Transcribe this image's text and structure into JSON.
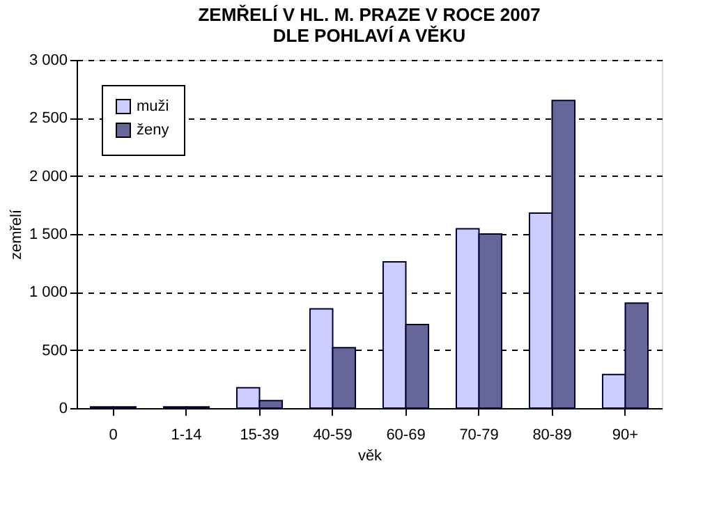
{
  "chart_data": {
    "type": "bar",
    "title": "ZEMŘELÍ V HL. M. PRAZE V ROCE 2007\nDLE POHLAVÍ A VĚKU",
    "xlabel": "věk",
    "ylabel": "zemřelí",
    "categories": [
      "0",
      "1-14",
      "15-39",
      "40-59",
      "60-69",
      "70-79",
      "80-89",
      "90+"
    ],
    "series": [
      {
        "name": "muži",
        "color": "#ccccff",
        "values": [
          10,
          10,
          175,
          855,
          1260,
          1545,
          1680,
          290
        ]
      },
      {
        "name": "ženy",
        "color": "#666699",
        "values": [
          10,
          10,
          65,
          520,
          720,
          1500,
          2650,
          905
        ]
      }
    ],
    "ylim": [
      0,
      3000
    ],
    "yticks": [
      {
        "value": 0,
        "label": "0"
      },
      {
        "value": 500,
        "label": "500"
      },
      {
        "value": 1000,
        "label": "1 000"
      },
      {
        "value": 1500,
        "label": "1 500"
      },
      {
        "value": 2000,
        "label": "2 000"
      },
      {
        "value": 2500,
        "label": "2 500"
      },
      {
        "value": 3000,
        "label": "3 000"
      }
    ],
    "grid": "y",
    "legend": "top left"
  }
}
